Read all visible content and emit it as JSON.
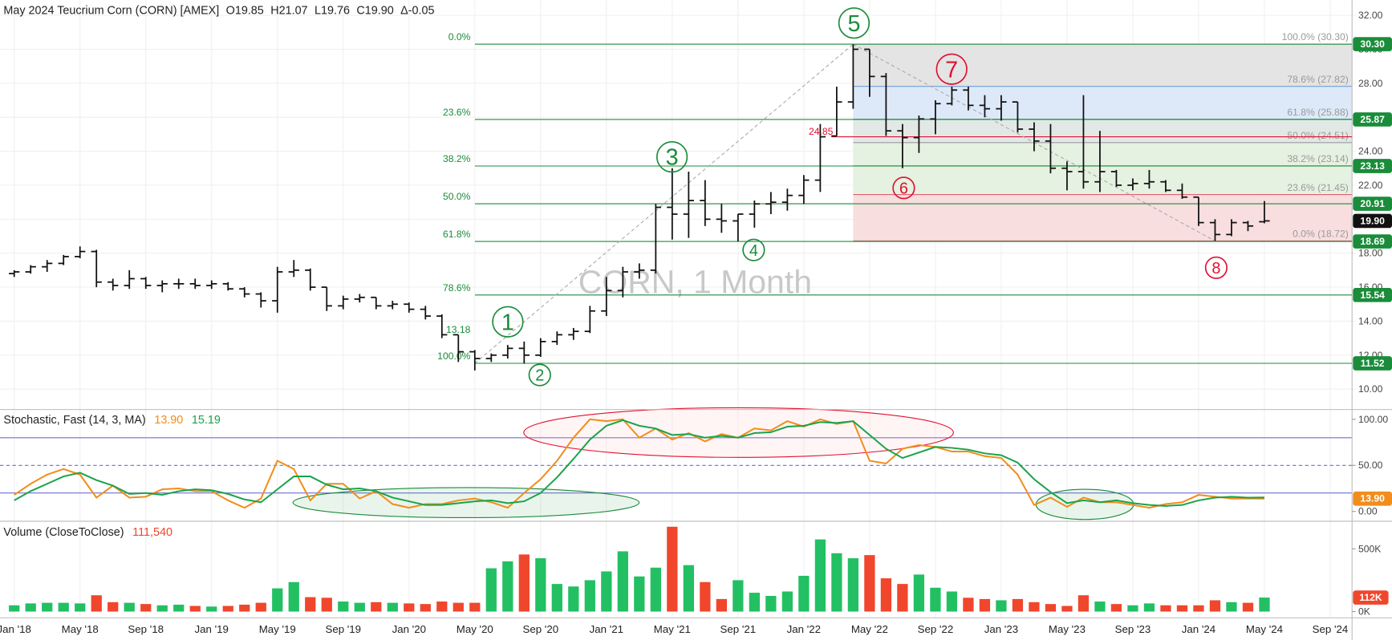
{
  "chart_data": [
    {
      "type": "ohlc",
      "title": "May 2024 Teucrium Corn (CORN) [AMEX]",
      "summary": [
        "O19.85",
        "H21.07",
        "L19.76",
        "C19.90",
        "Δ-0.05"
      ],
      "watermark": "CORN, 1 Month",
      "categories": [
        "Jan '18",
        null,
        null,
        null,
        "May '18",
        null,
        null,
        null,
        "Sep '18",
        null,
        null,
        null,
        "Jan '19",
        null,
        null,
        null,
        "May '19",
        null,
        null,
        null,
        "Sep '19",
        null,
        null,
        null,
        "Jan '20",
        null,
        null,
        null,
        "May '20",
        null,
        null,
        null,
        "Sep '20",
        null,
        null,
        null,
        "Jan '21",
        null,
        null,
        null,
        "May '21",
        null,
        null,
        null,
        "Sep '21",
        null,
        null,
        null,
        "Jan '22",
        null,
        null,
        null,
        "May '22",
        null,
        null,
        null,
        "Sep '22",
        null,
        null,
        null,
        "Jan '23",
        null,
        null,
        null,
        "May '23",
        null,
        null,
        null,
        "Sep '23",
        null,
        null,
        null,
        "Jan '24",
        null,
        null,
        null,
        "May '24",
        null,
        null,
        null,
        "Sep '24"
      ],
      "ohlc": [
        [
          16.8,
          17.0,
          16.6,
          16.9
        ],
        [
          16.9,
          17.3,
          16.8,
          17.2
        ],
        [
          17.2,
          17.6,
          16.9,
          17.4
        ],
        [
          17.4,
          17.9,
          17.3,
          17.8
        ],
        [
          17.8,
          18.4,
          17.7,
          18.1
        ],
        [
          18.1,
          18.2,
          16.0,
          16.3
        ],
        [
          16.3,
          16.5,
          15.8,
          16.1
        ],
        [
          16.1,
          17.0,
          15.9,
          16.5
        ],
        [
          16.5,
          16.6,
          15.9,
          16.1
        ],
        [
          16.1,
          16.4,
          15.7,
          16.2
        ],
        [
          16.2,
          16.5,
          15.9,
          16.2
        ],
        [
          16.2,
          16.5,
          15.9,
          16.1
        ],
        [
          16.1,
          16.4,
          15.9,
          16.2
        ],
        [
          16.2,
          16.3,
          15.8,
          15.9
        ],
        [
          15.9,
          16.0,
          15.4,
          15.6
        ],
        [
          15.6,
          15.7,
          14.8,
          15.2
        ],
        [
          15.2,
          17.2,
          14.5,
          16.9
        ],
        [
          16.9,
          17.6,
          16.6,
          17.0
        ],
        [
          17.0,
          17.1,
          15.8,
          16.0
        ],
        [
          16.0,
          16.0,
          14.6,
          14.9
        ],
        [
          14.9,
          15.5,
          14.7,
          15.3
        ],
        [
          15.3,
          15.6,
          15.1,
          15.4
        ],
        [
          15.4,
          15.4,
          14.7,
          14.9
        ],
        [
          14.9,
          15.2,
          14.7,
          15.0
        ],
        [
          15.0,
          15.1,
          14.5,
          14.7
        ],
        [
          14.7,
          14.9,
          14.1,
          14.3
        ],
        [
          14.3,
          14.4,
          13.0,
          13.2
        ],
        [
          13.2,
          13.2,
          11.6,
          12.2
        ],
        [
          12.2,
          12.3,
          11.1,
          11.8
        ],
        [
          11.8,
          12.1,
          11.6,
          12.0
        ],
        [
          12.0,
          12.6,
          11.8,
          12.4
        ],
        [
          12.4,
          12.8,
          11.5,
          12.0
        ],
        [
          12.0,
          13.0,
          11.9,
          12.8
        ],
        [
          12.8,
          13.4,
          12.6,
          13.2
        ],
        [
          13.2,
          13.6,
          12.9,
          13.4
        ],
        [
          13.4,
          14.9,
          13.3,
          14.6
        ],
        [
          14.6,
          16.6,
          14.3,
          15.8
        ],
        [
          15.8,
          17.2,
          15.4,
          16.9
        ],
        [
          16.9,
          17.4,
          16.5,
          17.0
        ],
        [
          17.0,
          20.9,
          16.8,
          20.7
        ],
        [
          20.7,
          23.0,
          18.8,
          20.3
        ],
        [
          20.3,
          22.8,
          18.9,
          21.1
        ],
        [
          21.1,
          22.3,
          19.6,
          20.0
        ],
        [
          20.0,
          20.9,
          19.2,
          19.9
        ],
        [
          19.9,
          20.3,
          18.7,
          20.3
        ],
        [
          20.3,
          21.1,
          19.5,
          20.9
        ],
        [
          20.9,
          21.6,
          20.3,
          21.0
        ],
        [
          21.0,
          21.8,
          20.5,
          21.4
        ],
        [
          21.4,
          22.6,
          20.9,
          22.3
        ],
        [
          22.3,
          25.6,
          21.6,
          24.85
        ],
        [
          24.9,
          27.8,
          24.9,
          26.9
        ],
        [
          26.9,
          30.3,
          26.5,
          30.0
        ],
        [
          30.0,
          30.0,
          27.2,
          28.4
        ],
        [
          28.4,
          28.6,
          24.9,
          25.2
        ],
        [
          25.2,
          25.6,
          23.0,
          24.8
        ],
        [
          24.8,
          26.1,
          23.9,
          25.9
        ],
        [
          25.9,
          27.0,
          25.0,
          26.8
        ],
        [
          26.8,
          27.8,
          26.7,
          27.6
        ],
        [
          27.6,
          27.8,
          26.4,
          26.7
        ],
        [
          26.7,
          27.3,
          26.0,
          26.5
        ],
        [
          26.5,
          27.3,
          25.8,
          26.9
        ],
        [
          26.9,
          26.9,
          25.1,
          25.3
        ],
        [
          25.3,
          25.7,
          24.0,
          24.6
        ],
        [
          24.6,
          25.6,
          22.7,
          23.0
        ],
        [
          23.0,
          23.4,
          21.7,
          22.8
        ],
        [
          22.8,
          27.3,
          21.8,
          22.2
        ],
        [
          22.2,
          25.2,
          21.6,
          22.8
        ],
        [
          22.8,
          22.9,
          21.9,
          22.0
        ],
        [
          22.0,
          22.4,
          21.7,
          22.1
        ],
        [
          22.1,
          22.9,
          21.8,
          22.2
        ],
        [
          22.2,
          22.3,
          21.6,
          21.7
        ],
        [
          21.7,
          22.1,
          21.2,
          21.3
        ],
        [
          21.3,
          21.3,
          19.6,
          19.8
        ],
        [
          19.8,
          20.0,
          18.72,
          19.1
        ],
        [
          19.1,
          20.0,
          19.0,
          19.8
        ],
        [
          19.8,
          19.9,
          19.3,
          19.6
        ],
        [
          19.85,
          21.07,
          19.76,
          19.9
        ],
        null,
        null,
        null,
        null
      ],
      "color": "#111111",
      "ylim": [
        8.8,
        32.9
      ],
      "yticks": [
        {
          "value": 10,
          "label": "10.00"
        },
        {
          "value": 12,
          "label": "12.00"
        },
        {
          "value": 14,
          "label": "14.00"
        },
        {
          "value": 16,
          "label": "16.00"
        },
        {
          "value": 18,
          "label": "18.00"
        },
        {
          "value": 20,
          "label": "20.00"
        },
        {
          "value": 22,
          "label": "22.00"
        },
        {
          "value": 24,
          "label": "24.00"
        },
        {
          "value": 26,
          "label": "26.00"
        },
        {
          "value": 28,
          "label": "28.00"
        },
        {
          "value": 30,
          "label": "30.00"
        },
        {
          "value": 32,
          "label": "32.00"
        }
      ],
      "grid": true,
      "fib_color": "#1a8c3a",
      "fib_levels": [
        {
          "value": 30.3,
          "label": "0.0%",
          "price_label": "30.30"
        },
        {
          "value": 25.87,
          "label": "23.6%",
          "price_label": "25.87"
        },
        {
          "value": 23.13,
          "label": "38.2%",
          "price_label": "23.13"
        },
        {
          "value": 20.91,
          "label": "50.0%",
          "price_label": "20.91"
        },
        {
          "value": 18.69,
          "label": "61.8%",
          "price_label": "18.69"
        },
        {
          "value": 15.54,
          "label": "78.6%",
          "price_label": "15.54"
        },
        {
          "value": 11.52,
          "label": "100.0%",
          "price_label": "11.52"
        }
      ],
      "retracement": [
        {
          "value": 30.3,
          "label": "100.0% (30.30)",
          "color": "#9a9a9a",
          "fill": "#e4e4e4"
        },
        {
          "value": 27.82,
          "label": "78.6% (27.82)",
          "color": "#6f9fd8",
          "fill": "#dde9f8"
        },
        {
          "value": 25.88,
          "label": "61.8% (25.88)",
          "color": "#5b9a8a",
          "fill": "#e2e8e6"
        },
        {
          "value": 24.51,
          "label": "50.0% (24.51)",
          "color": "#9a9a9a",
          "fill": "#e5f1e1"
        },
        {
          "value": 23.14,
          "label": "38.2% (23.14)",
          "color": "#4caf50",
          "fill": "#e5f1e1"
        },
        {
          "value": 21.45,
          "label": "23.6% (21.45)",
          "color": "#e06070",
          "fill": "#f8dede"
        },
        {
          "value": 18.72,
          "label": "0.0% (18.72)",
          "color": "#e06070"
        }
      ],
      "wave_labels": [
        {
          "label": "1",
          "color": "#1a8c3a"
        },
        {
          "label": "2",
          "color": "#1a8c3a"
        },
        {
          "label": "3",
          "color": "#1a8c3a"
        },
        {
          "label": "4",
          "color": "#1a8c3a"
        },
        {
          "label": "5",
          "color": "#1a8c3a"
        },
        {
          "label": "6",
          "color": "#e0102f"
        },
        {
          "label": "7",
          "color": "#e0102f"
        },
        {
          "label": "8",
          "color": "#e0102f"
        }
      ],
      "price_notes": [
        {
          "value": 24.85,
          "color": "#e0102f"
        },
        {
          "value": 13.18,
          "color": "#1a8c3a"
        }
      ],
      "last_price": {
        "value": 19.9,
        "label": "19.90"
      }
    },
    {
      "type": "line",
      "title": "Stochastic, Fast  (14, 3, MA)",
      "series": [
        {
          "color": "#f28c1b",
          "label": "13.90",
          "values": [
            18,
            30,
            40,
            46,
            40,
            15,
            28,
            15,
            16,
            24,
            25,
            22,
            22,
            12,
            4,
            14,
            55,
            46,
            12,
            30,
            30,
            14,
            22,
            8,
            4,
            8,
            8,
            12,
            14,
            10,
            4,
            20,
            35,
            55,
            80,
            100,
            98,
            100,
            80,
            90,
            78,
            85,
            76,
            84,
            80,
            90,
            88,
            98,
            92,
            100,
            95,
            98,
            55,
            52,
            68,
            72,
            70,
            65,
            65,
            60,
            58,
            40,
            7,
            15,
            5,
            15,
            10,
            10,
            7,
            4,
            8,
            10,
            18,
            16,
            14,
            14,
            13.9
          ]
        },
        {
          "color": "#1aa34a",
          "label": "15.19",
          "values": [
            12,
            22,
            30,
            38,
            42,
            34,
            28,
            19,
            20,
            18,
            22,
            24,
            23,
            19,
            13,
            10,
            24,
            38,
            38,
            29,
            24,
            25,
            22,
            15,
            11,
            7,
            7,
            9,
            11,
            12,
            9,
            11,
            20,
            37,
            57,
            78,
            93,
            99,
            93,
            90,
            83,
            84,
            80,
            82,
            80,
            85,
            86,
            92,
            93,
            97,
            96,
            98,
            83,
            68,
            58,
            64,
            70,
            69,
            67,
            63,
            61,
            53,
            35,
            21,
            9,
            12,
            10,
            12,
            9,
            7,
            6,
            7,
            12,
            15,
            16,
            15,
            15.19
          ]
        }
      ],
      "ylim": [
        -10.6,
        110.6
      ],
      "yticks": [
        {
          "value": 0,
          "label": "0.00"
        },
        {
          "value": 50,
          "label": "50.00"
        },
        {
          "value": 100,
          "label": "100.00"
        }
      ],
      "levels": [
        80,
        20
      ],
      "mid_level": 50,
      "level_color": "#6f6fd0"
    },
    {
      "type": "bar",
      "title": "Volume  (CloseToClose)",
      "last_label": "111,540",
      "marker_label": "112K",
      "values": [
        50000,
        65000,
        70000,
        70000,
        65000,
        130000,
        75000,
        70000,
        60000,
        50000,
        55000,
        45000,
        40000,
        45000,
        55000,
        70000,
        185000,
        235000,
        115000,
        110000,
        80000,
        70000,
        75000,
        70000,
        65000,
        60000,
        80000,
        70000,
        70000,
        345000,
        400000,
        455000,
        425000,
        220000,
        200000,
        250000,
        320000,
        480000,
        280000,
        350000,
        676000,
        370000,
        235000,
        100000,
        250000,
        150000,
        125000,
        160000,
        285000,
        575000,
        465000,
        425000,
        450000,
        265000,
        220000,
        295000,
        190000,
        160000,
        110000,
        100000,
        90000,
        100000,
        75000,
        60000,
        45000,
        130000,
        80000,
        60000,
        50000,
        65000,
        50000,
        50000,
        50000,
        90000,
        75000,
        70000,
        111540
      ],
      "up_color": "#22c063",
      "down_color": "#f0462c",
      "ylim": [
        -50000,
        720000
      ],
      "yticks": [
        {
          "value": 0,
          "label": "0K"
        },
        {
          "value": 500000,
          "label": "500K"
        }
      ]
    }
  ]
}
